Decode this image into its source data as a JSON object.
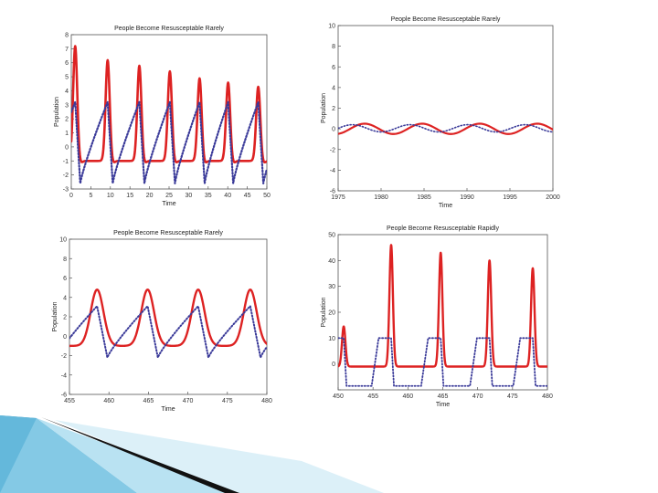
{
  "colors": {
    "infected": "#dd2222",
    "susceptible": "#3a3a99",
    "axis": "#555555"
  },
  "decor": {
    "ribbon": [
      "#2c8fb8",
      "#6fc0e0",
      "#b9e2f2",
      "#111111"
    ]
  },
  "chart_data": [
    {
      "id": "tl",
      "type": "line",
      "title": "People Become Resusceptable Rarely",
      "xlabel": "Time",
      "ylabel": "Population",
      "xlim": [
        0,
        50
      ],
      "ylim": [
        -3,
        8
      ],
      "xticks": [
        0,
        5,
        10,
        15,
        20,
        25,
        30,
        35,
        40,
        45,
        50
      ],
      "yticks": [
        -3,
        -2,
        -1,
        0,
        1,
        2,
        3,
        4,
        5,
        6,
        7,
        8
      ],
      "xtick_labels": [
        "0",
        "5",
        "10",
        "15",
        "20",
        "25",
        "30",
        "35",
        "40",
        "45",
        "50"
      ],
      "ytick_labels": [
        "-3",
        "-2",
        "-1",
        "0",
        "1",
        "2",
        "3",
        "4",
        "5",
        "6",
        "7",
        "8"
      ],
      "series": [
        {
          "style": "solid",
          "color": "#dd2222",
          "width": 2.6,
          "gen": {
            "mode": "spikes",
            "from": 0,
            "to": 50,
            "step": 0.1,
            "base": -1,
            "centers": [
              1,
              9.3,
              17.4,
              25.2,
              32.8,
              40.1,
              47.8
            ],
            "peaks": [
              7.2,
              6.2,
              5.8,
              5.4,
              4.9,
              4.6,
              4.3
            ],
            "width": 0.75,
            "dip": 0.2
          }
        },
        {
          "style": "dotted",
          "color": "#3a3a99",
          "width": 2.2,
          "gen": {
            "mode": "sawtooth",
            "from": 0,
            "to": 50,
            "step": 0.1,
            "centers": [
              1,
              9.3,
              17.4,
              25.2,
              32.8,
              40.1,
              47.8
            ],
            "low": -2.6,
            "high": 3.2,
            "drop": 1.3
          }
        }
      ]
    },
    {
      "id": "tr",
      "type": "line",
      "title": "People Become Resusceptable Rarely",
      "xlabel": "Time",
      "ylabel": "Population",
      "xlim": [
        1975,
        2000
      ],
      "ylim": [
        -6,
        10
      ],
      "xticks": [
        1975,
        1980,
        1985,
        1990,
        1995,
        2000
      ],
      "yticks": [
        -6,
        -4,
        -2,
        0,
        2,
        4,
        6,
        8,
        10
      ],
      "xtick_labels": [
        "1975",
        "1980",
        "1985",
        "1990",
        "1995",
        "2000"
      ],
      "ytick_labels": [
        "-6",
        "-4",
        "-2",
        "0",
        "2",
        "4",
        "6",
        "8",
        "10"
      ],
      "series": [
        {
          "style": "solid",
          "color": "#dd2222",
          "width": 2.2,
          "gen": {
            "mode": "sine",
            "from": 1975,
            "to": 2000,
            "step": 0.1,
            "amp": 0.5,
            "period": 6.7,
            "phase": 1976.4,
            "offset": 0
          }
        },
        {
          "style": "dotted",
          "color": "#3a3a99",
          "width": 1.6,
          "gen": {
            "mode": "sine",
            "from": 1975,
            "to": 2000,
            "step": 0.1,
            "amp": 0.35,
            "period": 6.7,
            "phase": 1975.0,
            "offset": 0.05
          }
        }
      ]
    },
    {
      "id": "bl",
      "type": "line",
      "title": "People Become Resusceptable Rarely",
      "xlabel": "Time",
      "ylabel": "Population",
      "xlim": [
        455,
        480
      ],
      "ylim": [
        -6,
        10
      ],
      "xticks": [
        455,
        460,
        465,
        470,
        475,
        480
      ],
      "yticks": [
        -6,
        -4,
        -2,
        0,
        2,
        4,
        6,
        8,
        10
      ],
      "xtick_labels": [
        "455",
        "460",
        "465",
        "470",
        "475",
        "480"
      ],
      "ytick_labels": [
        "-6",
        "-4",
        "-2",
        "0",
        "2",
        "4",
        "6",
        "8",
        "10"
      ],
      "series": [
        {
          "style": "solid",
          "color": "#dd2222",
          "width": 2.4,
          "gen": {
            "mode": "spikes",
            "from": 455,
            "to": 480,
            "step": 0.05,
            "base": -1,
            "centers": [
              458.5,
              464.9,
              471.3,
              477.9
            ],
            "peaks": [
              4.8,
              4.8,
              4.8,
              4.8
            ],
            "width": 1.15,
            "dip": 0
          }
        },
        {
          "style": "dotted",
          "color": "#3a3a99",
          "width": 2.0,
          "gen": {
            "mode": "sawtooth",
            "from": 455,
            "to": 480,
            "step": 0.05,
            "centers": [
              458.5,
              464.9,
              471.3,
              477.9
            ],
            "low": -2.2,
            "high": 3.1,
            "drop": 1.3
          }
        }
      ]
    },
    {
      "id": "br",
      "type": "line",
      "title": "People Become Resusceptable Rapidly",
      "xlabel": "Time",
      "ylabel": "Population",
      "xlim": [
        450,
        480
      ],
      "ylim": [
        -10,
        50
      ],
      "xticks": [
        450,
        455,
        460,
        465,
        470,
        475,
        480
      ],
      "yticks": [
        -10,
        0,
        10,
        20,
        30,
        40,
        50
      ],
      "xtick_labels": [
        "450",
        "455",
        "460",
        "465",
        "470",
        "475",
        "480"
      ],
      "ytick_labels": [
        "",
        "0",
        "10",
        "20",
        "30",
        "40",
        "50"
      ],
      "series": [
        {
          "style": "solid",
          "color": "#dd2222",
          "width": 2.4,
          "gen": {
            "mode": "spikes",
            "from": 450,
            "to": 480,
            "step": 0.02,
            "base": -1,
            "centers": [
              450.8,
              457.6,
              464.7,
              471.7,
              477.9
            ],
            "peaks": [
              14.5,
              46,
              43,
              40,
              37
            ],
            "width": 0.35,
            "dip": 0
          }
        },
        {
          "style": "dotted",
          "color": "#3a3a99",
          "width": 1.8,
          "gen": {
            "mode": "blocks",
            "from": 450,
            "to": 480,
            "step": 0.02,
            "centers": [
              450.8,
              457.6,
              464.7,
              471.7,
              477.9
            ],
            "low": -8.5,
            "high": 10,
            "rise": 1.0,
            "plateau": 1.8,
            "fall": 0.4
          }
        }
      ]
    }
  ]
}
